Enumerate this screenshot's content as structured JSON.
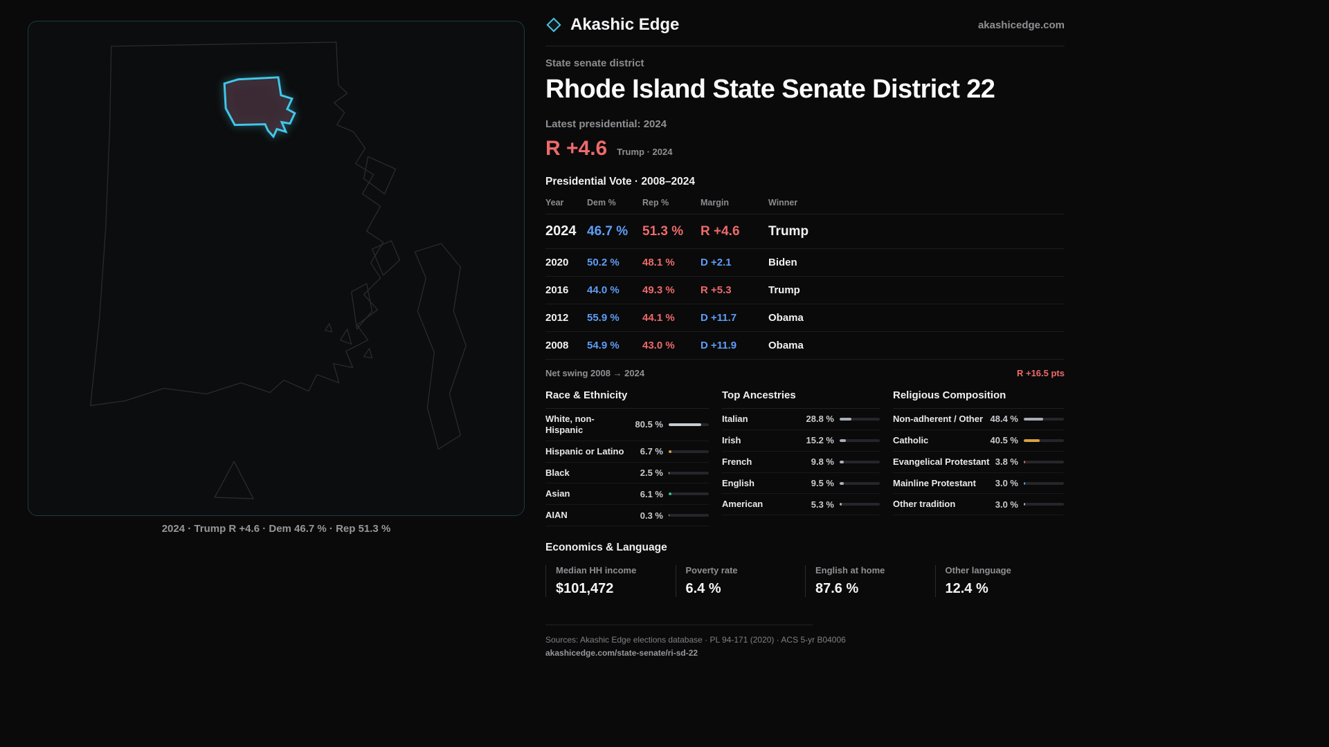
{
  "brand": {
    "name": "Akashic Edge",
    "site": "akashicedge.com"
  },
  "page": {
    "kicker": "State senate district",
    "title": "Rhode Island State Senate District 22",
    "latest_label": "Latest presidential: 2024",
    "headline_margin": "R +4.6",
    "headline_sub": "Trump · 2024"
  },
  "map": {
    "caption": "2024 · Trump R +4.6 · Dem 46.7 % · Rep 51.3 %"
  },
  "vote_table": {
    "title": "Presidential Vote · 2008–2024",
    "columns": [
      "Year",
      "Dem %",
      "Rep %",
      "Margin",
      "Winner"
    ],
    "rows": [
      {
        "year": "2024",
        "dem": "46.7 %",
        "rep": "51.3 %",
        "margin": "R +4.6",
        "winner": "Trump",
        "margin_color": "#ee6a6a"
      },
      {
        "year": "2020",
        "dem": "50.2 %",
        "rep": "48.1 %",
        "margin": "D +2.1",
        "winner": "Biden",
        "margin_color": "#5f9df6"
      },
      {
        "year": "2016",
        "dem": "44.0 %",
        "rep": "49.3 %",
        "margin": "R +5.3",
        "winner": "Trump",
        "margin_color": "#ee6a6a"
      },
      {
        "year": "2012",
        "dem": "55.9 %",
        "rep": "44.1 %",
        "margin": "D +11.7",
        "winner": "Obama",
        "margin_color": "#5f9df6"
      },
      {
        "year": "2008",
        "dem": "54.9 %",
        "rep": "43.0 %",
        "margin": "D +11.9",
        "winner": "Obama",
        "margin_color": "#5f9df6"
      }
    ],
    "net_swing_label": "Net swing 2008 → 2024",
    "net_swing_value": "R +16.5 pts"
  },
  "demographics": {
    "race": {
      "title": "Race & Ethnicity",
      "rows": [
        {
          "label": "White, non-Hispanic",
          "value": "80.5 %",
          "pct": 80.5,
          "color": "#c7ccd4"
        },
        {
          "label": "Hispanic or Latino",
          "value": "6.7 %",
          "pct": 6.7,
          "color": "#d9a13f"
        },
        {
          "label": "Black",
          "value": "2.5 %",
          "pct": 2.5,
          "color": "#d9dadc"
        },
        {
          "label": "Asian",
          "value": "6.1 %",
          "pct": 6.1,
          "color": "#31c48d"
        },
        {
          "label": "AIAN",
          "value": "0.3 %",
          "pct": 0.3,
          "color": "#9aa0a8"
        }
      ]
    },
    "ancestries": {
      "title": "Top Ancestries",
      "rows": [
        {
          "label": "Italian",
          "value": "28.8 %",
          "pct": 28.8,
          "color": "#aab0b8"
        },
        {
          "label": "Irish",
          "value": "15.2 %",
          "pct": 15.2,
          "color": "#aab0b8"
        },
        {
          "label": "French",
          "value": "9.8 %",
          "pct": 9.8,
          "color": "#aab0b8"
        },
        {
          "label": "English",
          "value": "9.5 %",
          "pct": 9.5,
          "color": "#aab0b8"
        },
        {
          "label": "American",
          "value": "5.3 %",
          "pct": 5.3,
          "color": "#aab0b8"
        }
      ]
    },
    "religion": {
      "title": "Religious Composition",
      "rows": [
        {
          "label": "Non-adherent / Other",
          "value": "48.4 %",
          "pct": 48.4,
          "color": "#a7adb5"
        },
        {
          "label": "Catholic",
          "value": "40.5 %",
          "pct": 40.5,
          "color": "#d9a13f"
        },
        {
          "label": "Evangelical Protestant",
          "value": "3.8 %",
          "pct": 3.8,
          "color": "#e06464"
        },
        {
          "label": "Mainline Protestant",
          "value": "3.0 %",
          "pct": 3.0,
          "color": "#5b9bf8"
        },
        {
          "label": "Other tradition",
          "value": "3.0 %",
          "pct": 3.0,
          "color": "#a7adb5"
        }
      ]
    }
  },
  "economics": {
    "title": "Economics & Language",
    "stats": [
      {
        "label": "Median HH income",
        "value": "$101,472"
      },
      {
        "label": "Poverty rate",
        "value": "6.4 %"
      },
      {
        "label": "English at home",
        "value": "87.6 %"
      },
      {
        "label": "Other language",
        "value": "12.4 %"
      }
    ]
  },
  "footer": {
    "sources": "Sources: Akashic Edge elections database · PL 94-171 (2020) · ACS 5-yr B04006",
    "permalink": "akashicedge.com/state-senate/ri-sd-22"
  }
}
